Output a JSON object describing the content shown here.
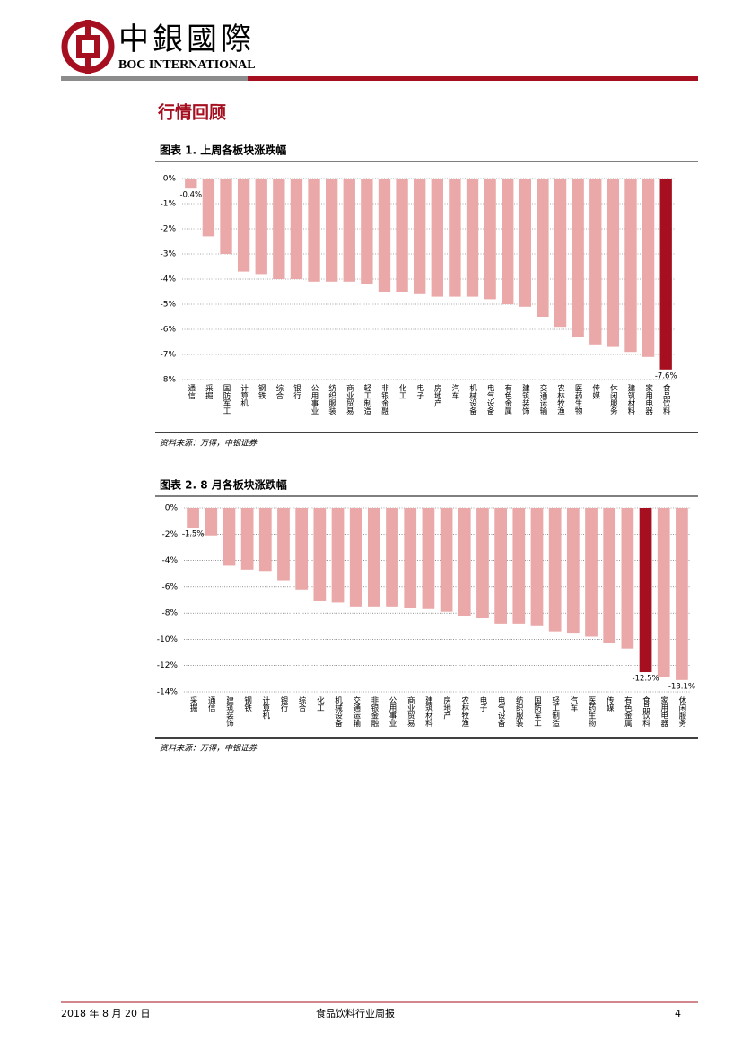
{
  "header": {
    "logo_cn": "中銀國際",
    "logo_en": "BOC INTERNATIONAL"
  },
  "section_title": "行情回顾",
  "chart_data": [
    {
      "type": "bar",
      "title": "图表 1. 上周各板块涨跌幅",
      "source": "资料来源：万得，中银证券",
      "categories": [
        "通信",
        "采掘",
        "国防军工",
        "计算机",
        "钢铁",
        "综合",
        "银行",
        "公用事业",
        "纺织服装",
        "商业贸易",
        "轻工制造",
        "非银金融",
        "化工",
        "电子",
        "房地产",
        "汽车",
        "机械设备",
        "电气设备",
        "有色金属",
        "建筑装饰",
        "交通运输",
        "农林牧渔",
        "医药生物",
        "传媒",
        "休闲服务",
        "建筑材料",
        "家用电器",
        "食品饮料"
      ],
      "values": [
        -0.4,
        -2.3,
        -3.0,
        -3.7,
        -3.8,
        -4.0,
        -4.0,
        -4.1,
        -4.1,
        -4.1,
        -4.2,
        -4.5,
        -4.5,
        -4.6,
        -4.7,
        -4.7,
        -4.7,
        -4.8,
        -5.0,
        -5.1,
        -5.5,
        -5.9,
        -6.3,
        -6.6,
        -6.7,
        -6.9,
        -7.1,
        -7.6
      ],
      "value_labels": [
        "-0.4%",
        null,
        null,
        null,
        null,
        null,
        null,
        null,
        null,
        null,
        null,
        null,
        null,
        null,
        null,
        null,
        null,
        null,
        null,
        null,
        null,
        null,
        null,
        null,
        null,
        null,
        null,
        "-7.6%"
      ],
      "colors": [
        "#eaa8a8",
        "#eaa8a8",
        "#eaa8a8",
        "#eaa8a8",
        "#eaa8a8",
        "#eaa8a8",
        "#eaa8a8",
        "#eaa8a8",
        "#eaa8a8",
        "#eaa8a8",
        "#eaa8a8",
        "#eaa8a8",
        "#eaa8a8",
        "#eaa8a8",
        "#eaa8a8",
        "#eaa8a8",
        "#eaa8a8",
        "#eaa8a8",
        "#eaa8a8",
        "#eaa8a8",
        "#eaa8a8",
        "#eaa8a8",
        "#eaa8a8",
        "#eaa8a8",
        "#eaa8a8",
        "#eaa8a8",
        "#eaa8a8",
        "#a50f1f"
      ],
      "ylim": [
        -8,
        0
      ],
      "yticks": [
        {
          "value": 0,
          "label": "0%"
        },
        {
          "value": -1,
          "label": "-1%"
        },
        {
          "value": -2,
          "label": "-2%"
        },
        {
          "value": -3,
          "label": "-3%"
        },
        {
          "value": -4,
          "label": "-4%"
        },
        {
          "value": -5,
          "label": "-5%"
        },
        {
          "value": -6,
          "label": "-6%"
        },
        {
          "value": -7,
          "label": "-7%"
        },
        {
          "value": -8,
          "label": "-8%"
        }
      ],
      "grid": true
    },
    {
      "type": "bar",
      "title": "图表 2. 8 月各板块涨跌幅",
      "source": "资料来源：万得，中银证券",
      "categories": [
        "采掘",
        "通信",
        "建筑装饰",
        "钢铁",
        "计算机",
        "银行",
        "综合",
        "化工",
        "机械设备",
        "交通运输",
        "非银金融",
        "公用事业",
        "商业贸易",
        "建筑材料",
        "房地产",
        "农林牧渔",
        "电子",
        "电气设备",
        "纺织服装",
        "国防军工",
        "轻工制造",
        "汽车",
        "医药生物",
        "传媒",
        "有色金属",
        "食品饮料",
        "家用电器",
        "休闲服务"
      ],
      "values": [
        -1.5,
        -2.1,
        -4.4,
        -4.7,
        -4.8,
        -5.5,
        -6.2,
        -7.1,
        -7.2,
        -7.5,
        -7.5,
        -7.5,
        -7.6,
        -7.7,
        -7.9,
        -8.2,
        -8.4,
        -8.8,
        -8.8,
        -9.0,
        -9.4,
        -9.5,
        -9.8,
        -10.3,
        -10.7,
        -12.5,
        -12.9,
        -13.1
      ],
      "value_labels": [
        "-1.5%",
        null,
        null,
        null,
        null,
        null,
        null,
        null,
        null,
        null,
        null,
        null,
        null,
        null,
        null,
        null,
        null,
        null,
        null,
        null,
        null,
        null,
        null,
        null,
        null,
        "-12.5%",
        null,
        "-13.1%"
      ],
      "colors": [
        "#eaa8a8",
        "#eaa8a8",
        "#eaa8a8",
        "#eaa8a8",
        "#eaa8a8",
        "#eaa8a8",
        "#eaa8a8",
        "#eaa8a8",
        "#eaa8a8",
        "#eaa8a8",
        "#eaa8a8",
        "#eaa8a8",
        "#eaa8a8",
        "#eaa8a8",
        "#eaa8a8",
        "#eaa8a8",
        "#eaa8a8",
        "#eaa8a8",
        "#eaa8a8",
        "#eaa8a8",
        "#eaa8a8",
        "#eaa8a8",
        "#eaa8a8",
        "#eaa8a8",
        "#eaa8a8",
        "#a50f1f",
        "#eaa8a8",
        "#eaa8a8"
      ],
      "ylim": [
        -14,
        0
      ],
      "yticks": [
        {
          "value": 0,
          "label": "0%"
        },
        {
          "value": -2,
          "label": "-2%"
        },
        {
          "value": -4,
          "label": "-4%"
        },
        {
          "value": -6,
          "label": "-6%"
        },
        {
          "value": -8,
          "label": "-8%"
        },
        {
          "value": -10,
          "label": "-10%"
        },
        {
          "value": -12,
          "label": "-12%"
        },
        {
          "value": -14,
          "label": "-14%"
        }
      ],
      "grid": true
    }
  ],
  "footer": {
    "date": "2018 年 8 月 20 日",
    "report": "食品饮料行业周报",
    "page": "4"
  }
}
